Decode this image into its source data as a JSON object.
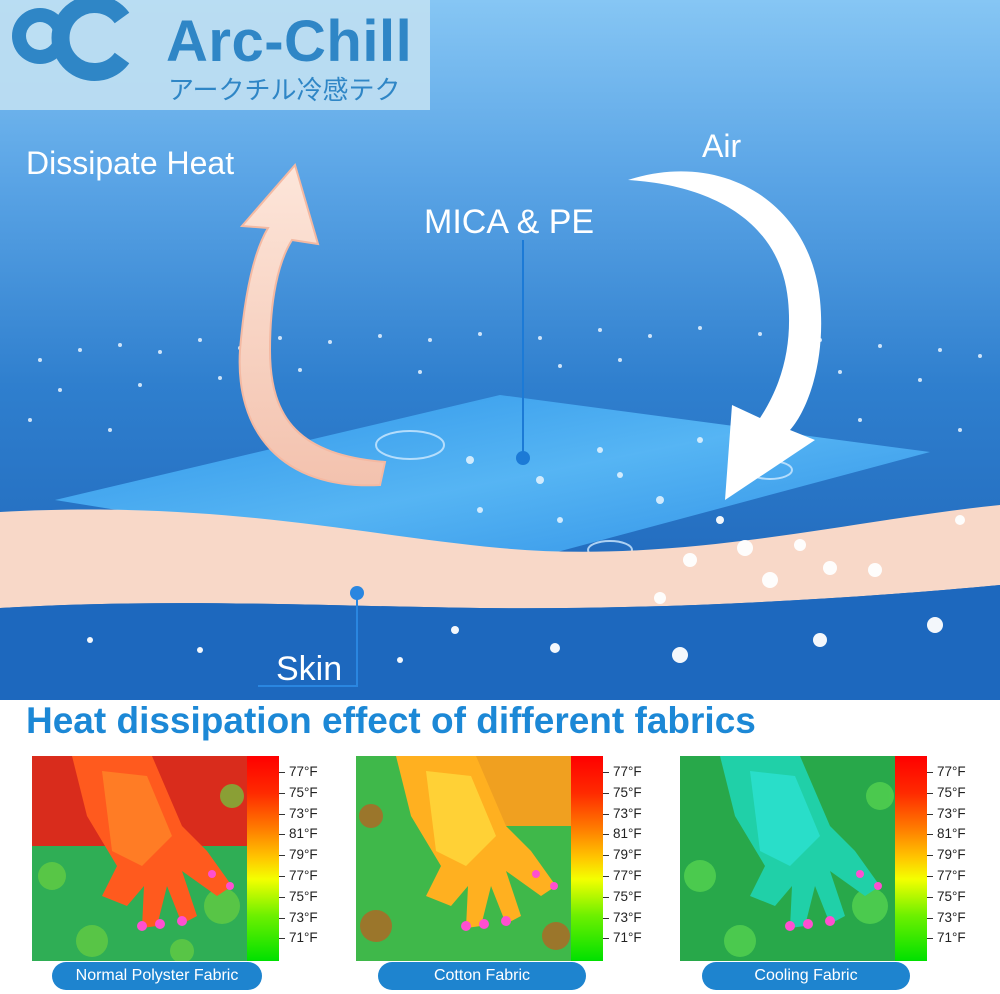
{
  "brand": {
    "name": "Arc-Chill",
    "subtitle": "アークチル冷感テク"
  },
  "hero": {
    "dissipate_label": "Dissipate Heat",
    "air_label": "Air",
    "layer_label": "MICA & PE",
    "skin_label": "Skin",
    "colors": {
      "sky_top": "#7cbdf0",
      "sea_mid": "#3d8ad6",
      "sea_deep": "#1a5fb4",
      "sheet": "#3fa6f2",
      "skin": "#f8d8c8",
      "heat_arrow": "#f6c9b5"
    }
  },
  "comparison": {
    "title": "Heat dissipation effect of different fabrics",
    "scale_labels": [
      "77°F",
      "75°F",
      "73°F",
      "81°F",
      "79°F",
      "77°F",
      "75°F",
      "73°F",
      "71°F"
    ],
    "fabrics": [
      {
        "label": "Normal Polyster Fabric",
        "dominant_color": "#ff3a10"
      },
      {
        "label": "Cotton Fabric",
        "dominant_color": "#ffa010"
      },
      {
        "label": "Cooling Fabric",
        "dominant_color": "#10e080"
      }
    ]
  }
}
